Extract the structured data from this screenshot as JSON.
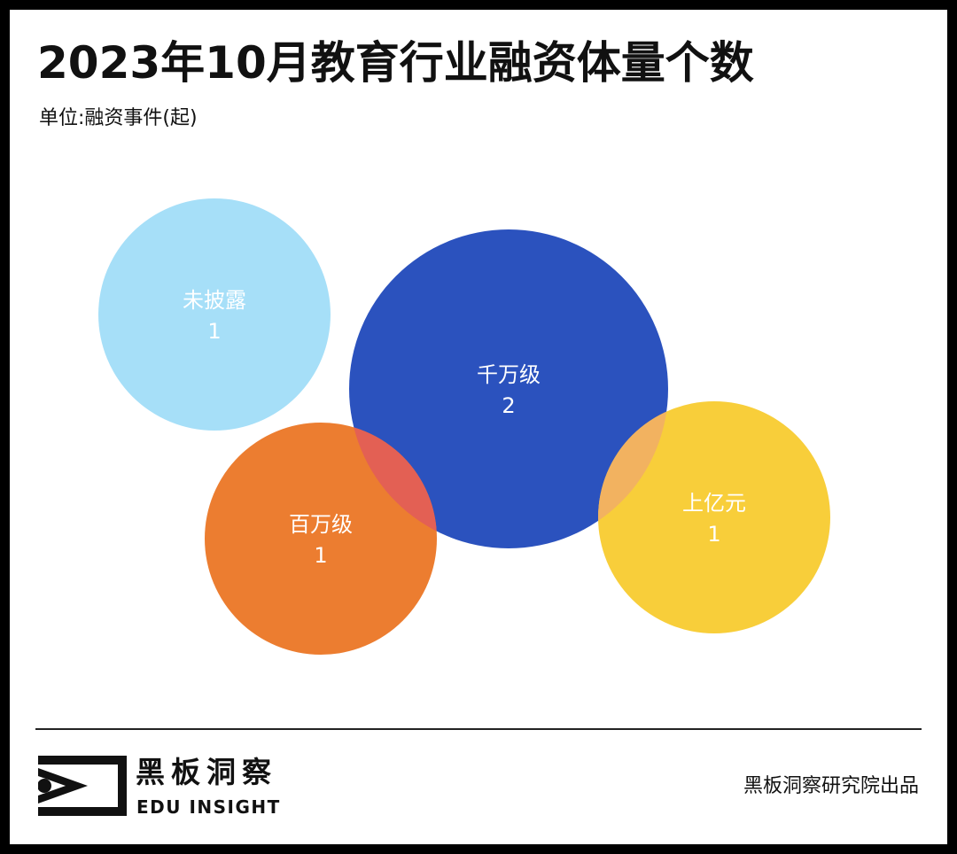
{
  "header": {
    "title": "2023年10月教育行业融资体量个数",
    "unit": "单位:融资事件(起)"
  },
  "chart_data": {
    "type": "bubble",
    "title": "2023年10月教育行业融资体量个数",
    "unit": "单位:融资事件(起)",
    "categories": [
      "未披露",
      "千万级",
      "百万级",
      "上亿元"
    ],
    "values": [
      1,
      2,
      1,
      1
    ],
    "colors": [
      "#a6dff8",
      "#2b52be",
      "#ec7d30",
      "#f8ce3a"
    ],
    "overlap_colors": {
      "百万级_千万级": "#e36054",
      "千万级_上亿元": "#f2b260"
    }
  },
  "footer": {
    "brand_cn": "黑板洞察",
    "brand_en": "EDU INSIGHT",
    "publisher": "黑板洞察研究院出品"
  },
  "logo": {
    "icon": "eye-frame-logo-icon",
    "color": "#111111"
  }
}
